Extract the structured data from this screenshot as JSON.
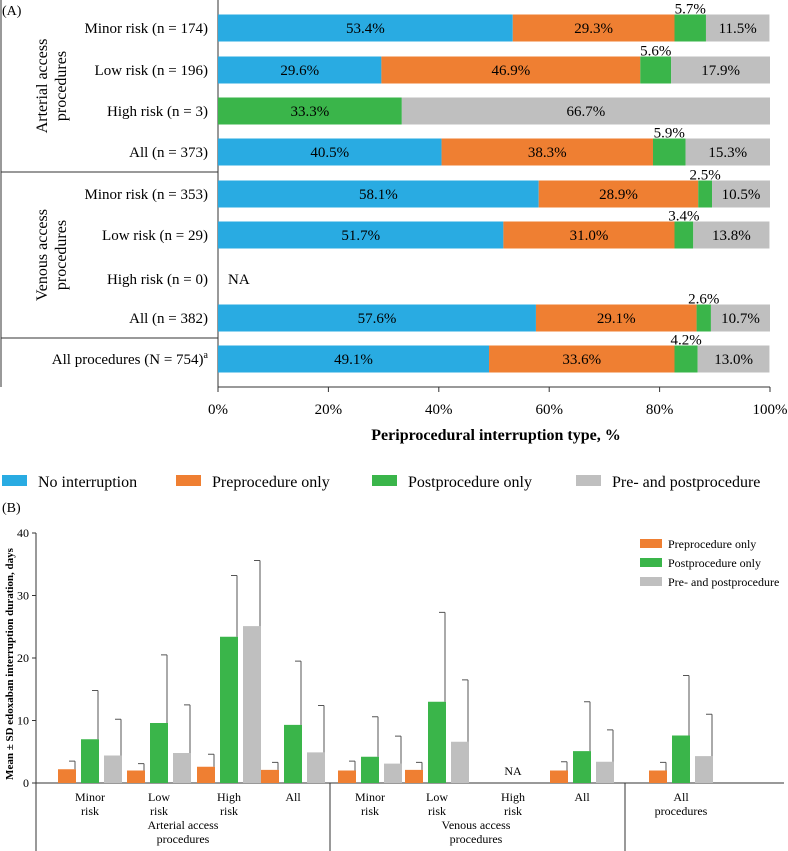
{
  "panelA": {
    "panel_label": "(A)",
    "group_labels": [
      "Arterial access\nprocedures",
      "Venous access\nprocedures"
    ],
    "xlabel": "Periprocedural interruption type, %",
    "na_text": "NA",
    "ticks": [
      0,
      20,
      40,
      60,
      80,
      100
    ],
    "tick_labels": [
      "0%",
      "20%",
      "40%",
      "60%",
      "80%",
      "100%"
    ],
    "legend": [
      {
        "label": "No interruption",
        "color": "#29abe2"
      },
      {
        "label": "Preprocedure only",
        "color": "#ef7f32"
      },
      {
        "label": "Postprocedure only",
        "color": "#3ab54a"
      },
      {
        "label": "Pre- and postprocedure",
        "color": "#bfbfbf"
      }
    ],
    "rows": [
      {
        "label": "Minor risk (n = 174)",
        "values": [
          53.4,
          29.3,
          5.7,
          11.5
        ],
        "labels": [
          "53.4%",
          "29.3%",
          "5.7%",
          "11.5%"
        ]
      },
      {
        "label": "Low risk (n = 196)",
        "values": [
          29.6,
          46.9,
          5.6,
          17.9
        ],
        "labels": [
          "29.6%",
          "46.9%",
          "5.6%",
          "17.9%"
        ]
      },
      {
        "label": "High risk (n = 3)",
        "values": [
          0,
          0,
          33.3,
          66.7
        ],
        "labels": [
          "",
          "",
          "33.3%",
          "66.7%"
        ]
      },
      {
        "label": "All (n = 373)",
        "values": [
          40.5,
          38.3,
          5.9,
          15.3
        ],
        "labels": [
          "40.5%",
          "38.3%",
          "5.9%",
          "15.3%"
        ]
      },
      {
        "label": "Minor risk (n = 353)",
        "values": [
          58.1,
          28.9,
          2.5,
          10.5
        ],
        "labels": [
          "58.1%",
          "28.9%",
          "2.5%",
          "10.5%"
        ]
      },
      {
        "label": "Low risk (n = 29)",
        "values": [
          51.7,
          31.0,
          3.4,
          13.8
        ],
        "labels": [
          "51.7%",
          "31.0%",
          "3.4%",
          "13.8%"
        ]
      },
      {
        "label": "High risk (n = 0)",
        "values": [],
        "labels": [],
        "na": true
      },
      {
        "label": "All (n = 382)",
        "values": [
          57.6,
          29.1,
          2.6,
          10.7
        ],
        "labels": [
          "57.6%",
          "29.1%",
          "2.6%",
          "10.7%"
        ]
      },
      {
        "label": "All procedures (N = 754)",
        "sup": "a",
        "values": [
          49.1,
          33.6,
          4.2,
          13.0
        ],
        "labels": [
          "49.1%",
          "33.6%",
          "4.2%",
          "13.0%"
        ]
      }
    ]
  },
  "chart_data": {
    "type": "bar",
    "panel_label": "(B)",
    "ylabel": "Mean ± SD edoxaban interruption duration, days",
    "ylim": [
      0,
      40
    ],
    "yticks": [
      0,
      10,
      20,
      30,
      40
    ],
    "legend": [
      {
        "label": "Preprocedure only",
        "color": "#ef7f32"
      },
      {
        "label": "Postprocedure only",
        "color": "#3ab54a"
      },
      {
        "label": "Pre- and postprocedure",
        "color": "#bfbfbf"
      }
    ],
    "na_text": "NA",
    "categories": [
      "Minor\nrisk",
      "Low\nrisk",
      "High\nrisk",
      "All",
      "Minor\nrisk",
      "Low\nrisk",
      "High\nrisk",
      "All",
      "All\nprocedures"
    ],
    "groups": [
      {
        "label": "Arterial access\nprocedures",
        "span": [
          0,
          3
        ]
      },
      {
        "label": "Venous access\nprocedures",
        "span": [
          4,
          7
        ]
      },
      {
        "label": "",
        "span": [
          8,
          8
        ]
      }
    ],
    "series": [
      {
        "name": "Preprocedure only",
        "means": [
          2.2,
          2.0,
          2.6,
          2.1,
          2.0,
          2.1,
          null,
          2.0,
          2.0
        ],
        "sd": [
          1.3,
          1.1,
          2.0,
          1.2,
          1.5,
          1.2,
          null,
          1.4,
          1.3
        ]
      },
      {
        "name": "Postprocedure only",
        "means": [
          7.0,
          9.6,
          23.4,
          9.3,
          4.2,
          13.0,
          null,
          5.1,
          7.6
        ],
        "sd": [
          7.8,
          10.9,
          9.8,
          10.2,
          6.4,
          14.3,
          null,
          7.9,
          9.6
        ]
      },
      {
        "name": "Pre- and postprocedure",
        "means": [
          4.4,
          4.8,
          25.1,
          4.9,
          3.1,
          6.6,
          null,
          3.4,
          4.3
        ],
        "sd": [
          5.8,
          7.7,
          10.5,
          7.5,
          4.4,
          9.9,
          null,
          5.1,
          6.7
        ]
      }
    ]
  }
}
